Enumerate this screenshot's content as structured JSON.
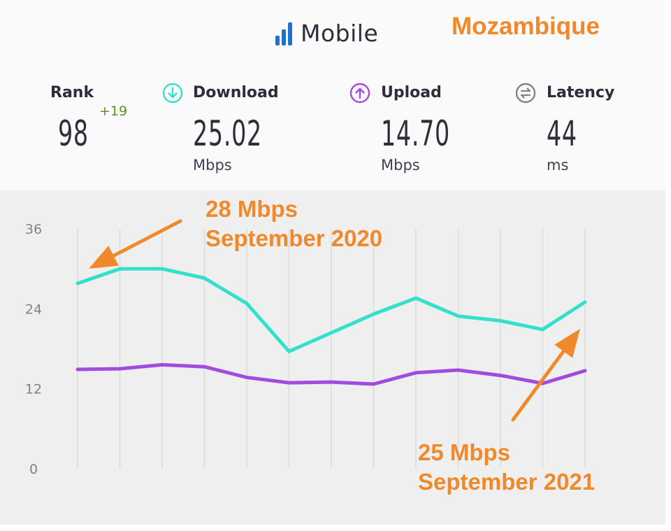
{
  "header": {
    "title": "Mobile",
    "country": "Mozambique",
    "title_icon": "signal-bars-icon"
  },
  "stats": {
    "rank": {
      "label": "Rank",
      "value": "98",
      "change": "+19"
    },
    "download": {
      "label": "Download",
      "value": "25.02",
      "unit": "Mbps",
      "icon": "download-arrow-icon",
      "color": "#33e0cc"
    },
    "upload": {
      "label": "Upload",
      "value": "14.70",
      "unit": "Mbps",
      "icon": "upload-arrow-icon",
      "color": "#a24be0"
    },
    "latency": {
      "label": "Latency",
      "value": "44",
      "unit": "ms",
      "icon": "latency-icon",
      "color": "#7d828c"
    }
  },
  "annotations": {
    "start": {
      "line1": "28 Mbps",
      "line2": "September 2020"
    },
    "end": {
      "line1": "25 Mbps",
      "line2": "September 2021"
    }
  },
  "colors": {
    "accent": "#f0892b",
    "download": "#33e0cc",
    "upload": "#a24be0"
  },
  "chart_data": {
    "type": "line",
    "title": "",
    "xlabel": "",
    "ylabel": "",
    "x": [
      "September 2020",
      "",
      "",
      "",
      "",
      "",
      "",
      "",
      "",
      "",
      "",
      "",
      "September 2021"
    ],
    "yticks": [
      "36",
      "24",
      "12",
      "0"
    ],
    "ylim": [
      0,
      36
    ],
    "grid": "vertical",
    "series": [
      {
        "name": "Download",
        "color": "#33e0cc",
        "values": [
          27.8,
          30.0,
          30.0,
          28.6,
          24.8,
          17.6,
          20.4,
          23.2,
          25.6,
          22.9,
          22.2,
          20.9,
          25.0
        ]
      },
      {
        "name": "Upload",
        "color": "#a24be0",
        "values": [
          14.9,
          15.0,
          15.6,
          15.3,
          13.7,
          12.9,
          13.0,
          12.7,
          14.4,
          14.8,
          14.0,
          12.8,
          14.7
        ]
      }
    ]
  }
}
